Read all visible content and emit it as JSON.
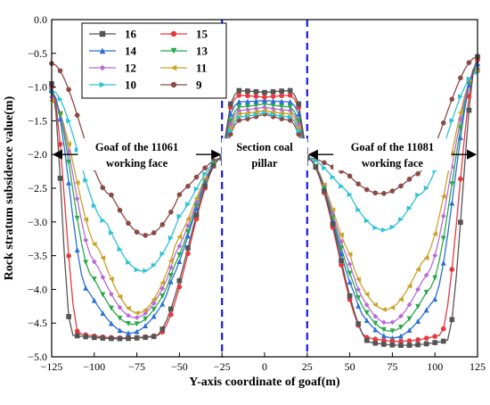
{
  "chart_data": {
    "type": "line",
    "xlabel": "Y-axis coordinate of goaf(m)",
    "ylabel": "Rock stratum subsidence value(m)",
    "xlim": [
      -125,
      125
    ],
    "ylim": [
      -5.0,
      0.0
    ],
    "x_ticks": [
      -125,
      -100,
      -75,
      -50,
      -25,
      0,
      25,
      50,
      75,
      100,
      125
    ],
    "y_ticks": [
      0.0,
      -0.5,
      -1.0,
      -1.5,
      -2.0,
      -2.5,
      -3.0,
      -3.5,
      -4.0,
      -4.5,
      -5.0
    ],
    "x_tick_labels": [
      "−125",
      "−100",
      "−75",
      "−50",
      "−25",
      "0",
      "25",
      "50",
      "75",
      "100",
      "125"
    ],
    "y_tick_labels": [
      "0.0",
      "−0.5",
      "−1.0",
      "−1.5",
      "−2.0",
      "−2.5",
      "−3.0",
      "−3.5",
      "−4.0",
      "−4.5",
      "−5.0"
    ],
    "grid": false,
    "legend_position": "top-left",
    "boundary_lines_x": [
      -25,
      25
    ],
    "boundary_line_color": "#1a1ae6",
    "annotations": [
      {
        "text": "Goaf of the 11061",
        "line2": "working face",
        "x_from": -125,
        "x_to": -25,
        "y": -2.0
      },
      {
        "text": "Section coal",
        "line2": "pillar",
        "x_from": -25,
        "x_to": 25,
        "y": -2.0
      },
      {
        "text": "Goaf of the 11081",
        "line2": "working face",
        "x_from": 25,
        "x_to": 125,
        "y": -2.0
      }
    ],
    "series": [
      {
        "name": "16",
        "color": "#555555",
        "marker": "square",
        "left_edge": -0.95,
        "left_min": -4.73,
        "flat_left": -4.68,
        "wall_left": -113,
        "right_edge": -0.55,
        "right_min": -4.83,
        "flat_right": -4.76,
        "wall_right": 107,
        "pillar_top": -1.05,
        "pillar_mid": -1.08,
        "pillar_edge": -1.25
      },
      {
        "name": "15",
        "color": "#e8383d",
        "marker": "circle",
        "left_edge": -1.0,
        "left_min": -4.72,
        "flat_left": -4.66,
        "wall_left": -109,
        "right_edge": -0.6,
        "right_min": -4.77,
        "flat_right": -4.68,
        "wall_right": 103,
        "pillar_top": -1.12,
        "pillar_mid": -1.15,
        "pillar_edge": -1.3
      },
      {
        "name": "14",
        "color": "#2a6fd6",
        "marker": "triangle-up",
        "left_edge": -1.05,
        "left_min": -4.65,
        "flat_left": -4.0,
        "wall_left": -104,
        "right_edge": -0.65,
        "right_min": -4.72,
        "flat_right": -4.2,
        "wall_right": 98,
        "pillar_top": -1.22,
        "pillar_mid": -1.2,
        "pillar_edge": -1.4
      },
      {
        "name": "13",
        "color": "#2ba84a",
        "marker": "triangle-down",
        "left_edge": -1.1,
        "left_min": -4.52,
        "flat_left": -3.8,
        "wall_left": -101,
        "right_edge": -0.7,
        "right_min": -4.62,
        "flat_right": -4.0,
        "wall_right": 96,
        "pillar_top": -1.3,
        "pillar_mid": -1.25,
        "pillar_edge": -1.5
      },
      {
        "name": "12",
        "color": "#b86ad9",
        "marker": "diamond",
        "left_edge": -1.15,
        "left_min": -4.42,
        "flat_left": -3.6,
        "wall_left": -99,
        "right_edge": -0.72,
        "right_min": -4.5,
        "flat_right": -3.8,
        "wall_right": 94,
        "pillar_top": -1.35,
        "pillar_mid": -1.3,
        "pillar_edge": -1.55
      },
      {
        "name": "11",
        "color": "#c9a22a",
        "marker": "triangle-left",
        "left_edge": -1.2,
        "left_min": -4.35,
        "flat_left": -3.4,
        "wall_left": -97,
        "right_edge": -0.75,
        "right_min": -4.3,
        "flat_right": -3.6,
        "wall_right": 92,
        "pillar_top": -1.4,
        "pillar_mid": -1.35,
        "pillar_edge": -1.6
      },
      {
        "name": "10",
        "color": "#2ec2d4",
        "marker": "triangle-right",
        "left_edge": -1.05,
        "left_min": -3.73,
        "flat_left": -3.0,
        "wall_left": -93,
        "right_edge": -0.78,
        "right_min": -3.12,
        "flat_right": -2.6,
        "wall_right": 90,
        "pillar_top": -1.45,
        "pillar_mid": -1.38,
        "pillar_edge": -1.65
      },
      {
        "name": "9",
        "color": "#8b4a47",
        "marker": "circle",
        "left_edge": -0.65,
        "left_min": -3.2,
        "flat_left": -2.6,
        "wall_left": -90,
        "right_edge": -0.55,
        "right_min": -2.58,
        "flat_right": -2.3,
        "wall_right": 88,
        "pillar_top": -1.5,
        "pillar_mid": -1.4,
        "pillar_edge": -1.7
      }
    ]
  }
}
